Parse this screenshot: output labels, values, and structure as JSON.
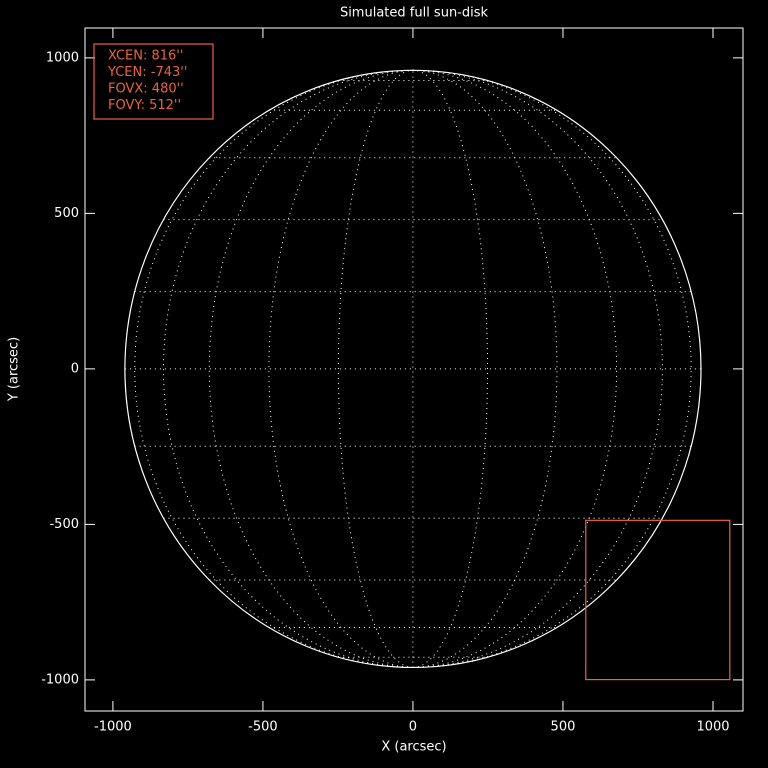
{
  "chart_data": {
    "type": "disk",
    "title": "Simulated full sun-disk",
    "xlabel": "X (arcsec)",
    "ylabel": "Y (arcsec)",
    "xlim": [
      -1093,
      1100
    ],
    "ylim": [
      -1100,
      1096
    ],
    "xticks": [
      -1000,
      -500,
      0,
      500,
      1000
    ],
    "yticks": [
      -1000,
      -500,
      0,
      500,
      1000
    ],
    "radius": 960,
    "grid_spacing": 15,
    "color": "#ffffff",
    "fov": {
      "xcen": 816,
      "ycen": -743,
      "fovx": 480,
      "fovy": 512,
      "color": "#e8643c",
      "labels": [
        "XCEN:  816''",
        "YCEN:  -743''",
        "FOVX:  480''",
        "FOVY:  512''"
      ]
    }
  }
}
